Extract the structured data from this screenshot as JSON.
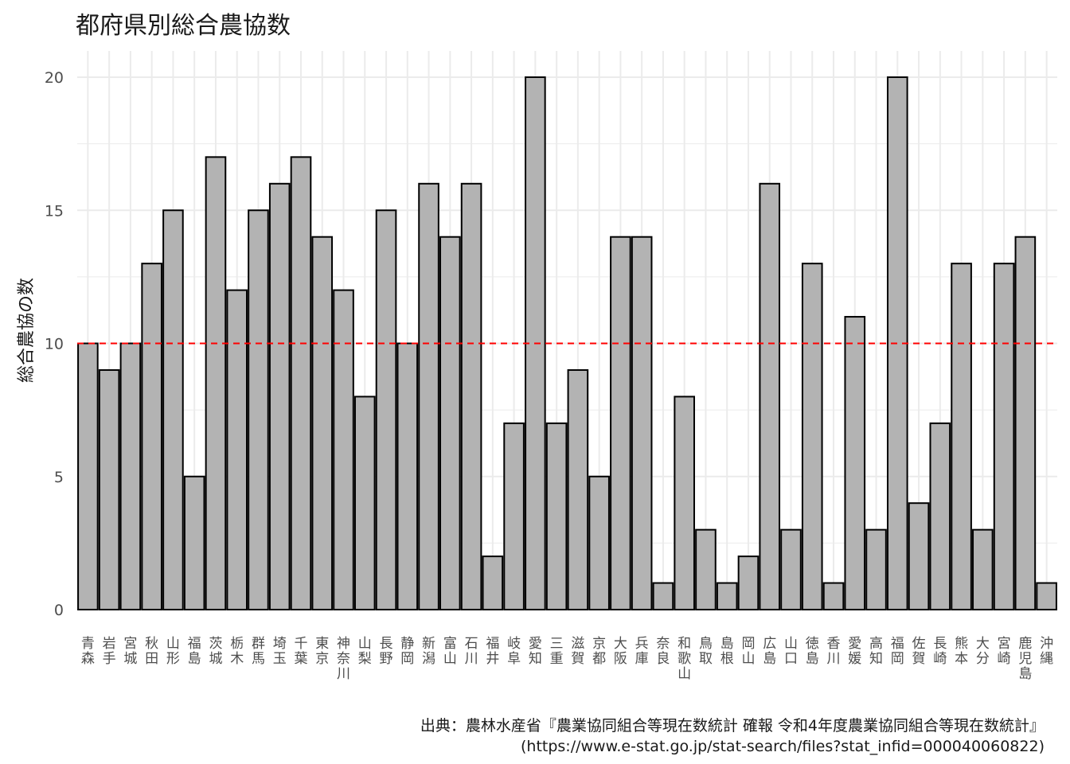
{
  "chart_data": {
    "type": "bar",
    "title": "都府県別総合農協数",
    "ylabel": "総合農協の数",
    "xlabel": "",
    "ylim": [
      0,
      21.0
    ],
    "yticks": [
      0,
      5,
      10,
      15,
      20
    ],
    "reference_line": {
      "value": 10,
      "color": "#ff0000",
      "style": "dashed"
    },
    "bar_fill": "#b3b3b3",
    "bar_stroke": "#000000",
    "grid": true,
    "categories": [
      "青森",
      "岩手",
      "宮城",
      "秋田",
      "山形",
      "福島",
      "茨城",
      "栃木",
      "群馬",
      "埼玉",
      "千葉",
      "東京",
      "神奈川",
      "山梨",
      "長野",
      "静岡",
      "新潟",
      "富山",
      "石川",
      "福井",
      "岐阜",
      "愛知",
      "三重",
      "滋賀",
      "京都",
      "大阪",
      "兵庫",
      "奈良",
      "和歌山",
      "鳥取",
      "島根",
      "岡山",
      "広島",
      "山口",
      "徳島",
      "香川",
      "愛媛",
      "高知",
      "福岡",
      "佐賀",
      "長崎",
      "熊本",
      "大分",
      "宮崎",
      "鹿児島",
      "沖縄"
    ],
    "values": [
      10,
      9,
      10,
      13,
      15,
      5,
      17,
      12,
      15,
      16,
      17,
      14,
      12,
      8,
      15,
      10,
      16,
      14,
      16,
      2,
      7,
      20,
      7,
      9,
      5,
      14,
      14,
      1,
      8,
      3,
      1,
      2,
      16,
      3,
      13,
      1,
      11,
      3,
      20,
      4,
      7,
      13,
      3,
      13,
      14,
      1
    ],
    "caption_lines": [
      "出典：農林水産省『農業協同組合等現在数統計 確報 令和4年度農業協同組合等現在数統計』",
      "(https://www.e-stat.go.jp/stat-search/files?stat_infid=000040060822)"
    ]
  }
}
